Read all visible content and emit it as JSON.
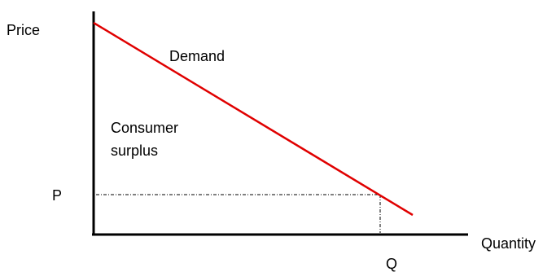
{
  "diagram": {
    "y_axis_label": "Price",
    "x_axis_label": "Quantity",
    "price_label": "P",
    "quantity_label": "Q",
    "curve_label": "Demand",
    "area_label_line1": "Consumer",
    "area_label_line2": "surplus"
  },
  "colors": {
    "demand_curve": "#e00000",
    "axes": "#000000",
    "guide_lines": "#000000"
  }
}
